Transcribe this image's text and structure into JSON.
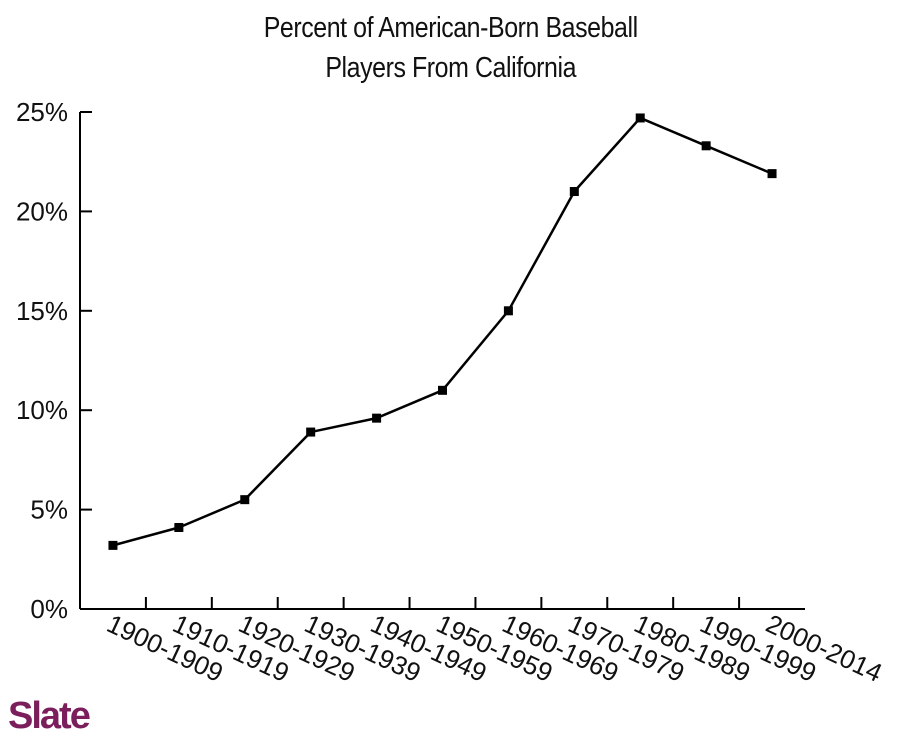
{
  "brand": {
    "name": "Slate",
    "color": "#7a1f5c"
  },
  "chart_data": {
    "type": "line",
    "title": [
      "Percent of American-Born Baseball",
      "Players From California"
    ],
    "xlabel": "",
    "ylabel": "",
    "categories": [
      "1900-1909",
      "1910-1919",
      "1920-1929",
      "1930-1939",
      "1940-1949",
      "1950-1959",
      "1960-1969",
      "1970-1979",
      "1980-1989",
      "1990-1999",
      "2000-2014"
    ],
    "values": [
      3.2,
      4.1,
      5.5,
      8.9,
      9.6,
      11.0,
      15.0,
      21.0,
      24.7,
      23.3,
      21.9
    ],
    "ylim": [
      0,
      25
    ],
    "yticks": [
      0,
      5,
      10,
      15,
      20,
      25
    ],
    "ytick_labels": [
      "0%",
      "5%",
      "10%",
      "15%",
      "20%",
      "25%"
    ],
    "grid": false,
    "marker": "square",
    "line_color": "#000000"
  }
}
